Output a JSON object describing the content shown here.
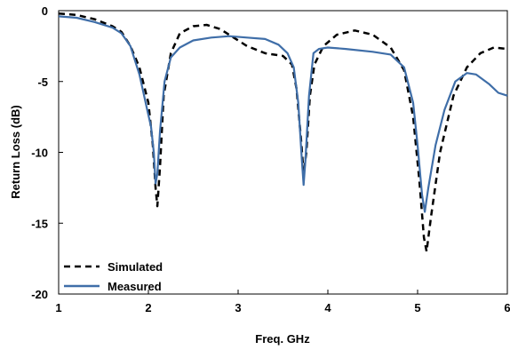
{
  "chart_data": {
    "type": "line",
    "xlabel": "Freq. GHz",
    "ylabel": "Return Loss (dB)",
    "xlim": [
      1,
      6
    ],
    "ylim": [
      -20,
      0
    ],
    "x_ticks": [
      "1",
      "2",
      "3",
      "4",
      "5",
      "6"
    ],
    "y_ticks": [
      "0",
      "-5",
      "-10",
      "-15",
      "-20"
    ],
    "grid": false,
    "legend_position": "bottom-left",
    "series": [
      {
        "name": "Simulated",
        "style": "dashed",
        "color": "#000000",
        "points": [
          [
            1.0,
            -0.2
          ],
          [
            1.2,
            -0.3
          ],
          [
            1.4,
            -0.6
          ],
          [
            1.6,
            -1.1
          ],
          [
            1.7,
            -1.5
          ],
          [
            1.8,
            -2.5
          ],
          [
            1.9,
            -4.0
          ],
          [
            2.0,
            -6.5
          ],
          [
            2.05,
            -9.5
          ],
          [
            2.08,
            -12.5
          ],
          [
            2.1,
            -13.8
          ],
          [
            2.13,
            -11.0
          ],
          [
            2.17,
            -6.0
          ],
          [
            2.25,
            -3.0
          ],
          [
            2.35,
            -1.6
          ],
          [
            2.5,
            -1.1
          ],
          [
            2.65,
            -1.0
          ],
          [
            2.8,
            -1.3
          ],
          [
            2.95,
            -1.9
          ],
          [
            3.1,
            -2.5
          ],
          [
            3.3,
            -3.0
          ],
          [
            3.5,
            -3.2
          ],
          [
            3.6,
            -3.8
          ],
          [
            3.65,
            -5.5
          ],
          [
            3.7,
            -9.0
          ],
          [
            3.73,
            -11.5
          ],
          [
            3.76,
            -10.0
          ],
          [
            3.8,
            -6.0
          ],
          [
            3.85,
            -3.8
          ],
          [
            3.95,
            -2.5
          ],
          [
            4.1,
            -1.7
          ],
          [
            4.3,
            -1.4
          ],
          [
            4.5,
            -1.7
          ],
          [
            4.7,
            -2.6
          ],
          [
            4.85,
            -4.2
          ],
          [
            4.95,
            -7.5
          ],
          [
            5.02,
            -12.0
          ],
          [
            5.07,
            -16.0
          ],
          [
            5.1,
            -17.0
          ],
          [
            5.15,
            -14.5
          ],
          [
            5.25,
            -10.0
          ],
          [
            5.4,
            -6.0
          ],
          [
            5.55,
            -4.0
          ],
          [
            5.7,
            -3.0
          ],
          [
            5.85,
            -2.6
          ],
          [
            6.0,
            -2.7
          ]
        ]
      },
      {
        "name": "Measured",
        "style": "solid",
        "color": "#3f6ea8",
        "points": [
          [
            1.0,
            -0.4
          ],
          [
            1.2,
            -0.5
          ],
          [
            1.4,
            -0.8
          ],
          [
            1.6,
            -1.2
          ],
          [
            1.7,
            -1.6
          ],
          [
            1.8,
            -2.5
          ],
          [
            1.9,
            -4.5
          ],
          [
            1.98,
            -6.8
          ],
          [
            2.03,
            -8.2
          ],
          [
            2.06,
            -10.0
          ],
          [
            2.08,
            -12.2
          ],
          [
            2.1,
            -11.5
          ],
          [
            2.13,
            -8.5
          ],
          [
            2.18,
            -5.0
          ],
          [
            2.25,
            -3.3
          ],
          [
            2.35,
            -2.6
          ],
          [
            2.5,
            -2.1
          ],
          [
            2.7,
            -1.9
          ],
          [
            2.9,
            -1.8
          ],
          [
            3.1,
            -1.9
          ],
          [
            3.3,
            -2.0
          ],
          [
            3.45,
            -2.4
          ],
          [
            3.55,
            -3.0
          ],
          [
            3.62,
            -4.0
          ],
          [
            3.67,
            -6.5
          ],
          [
            3.71,
            -10.5
          ],
          [
            3.73,
            -12.3
          ],
          [
            3.75,
            -10.5
          ],
          [
            3.79,
            -6.0
          ],
          [
            3.84,
            -3.0
          ],
          [
            3.9,
            -2.7
          ],
          [
            4.0,
            -2.6
          ],
          [
            4.2,
            -2.7
          ],
          [
            4.5,
            -2.9
          ],
          [
            4.7,
            -3.1
          ],
          [
            4.85,
            -4.0
          ],
          [
            4.95,
            -6.5
          ],
          [
            5.0,
            -9.5
          ],
          [
            5.05,
            -13.0
          ],
          [
            5.08,
            -14.2
          ],
          [
            5.12,
            -12.5
          ],
          [
            5.2,
            -9.5
          ],
          [
            5.3,
            -7.0
          ],
          [
            5.42,
            -5.0
          ],
          [
            5.55,
            -4.4
          ],
          [
            5.65,
            -4.5
          ],
          [
            5.8,
            -5.2
          ],
          [
            5.9,
            -5.8
          ],
          [
            6.0,
            -6.0
          ]
        ]
      }
    ]
  }
}
